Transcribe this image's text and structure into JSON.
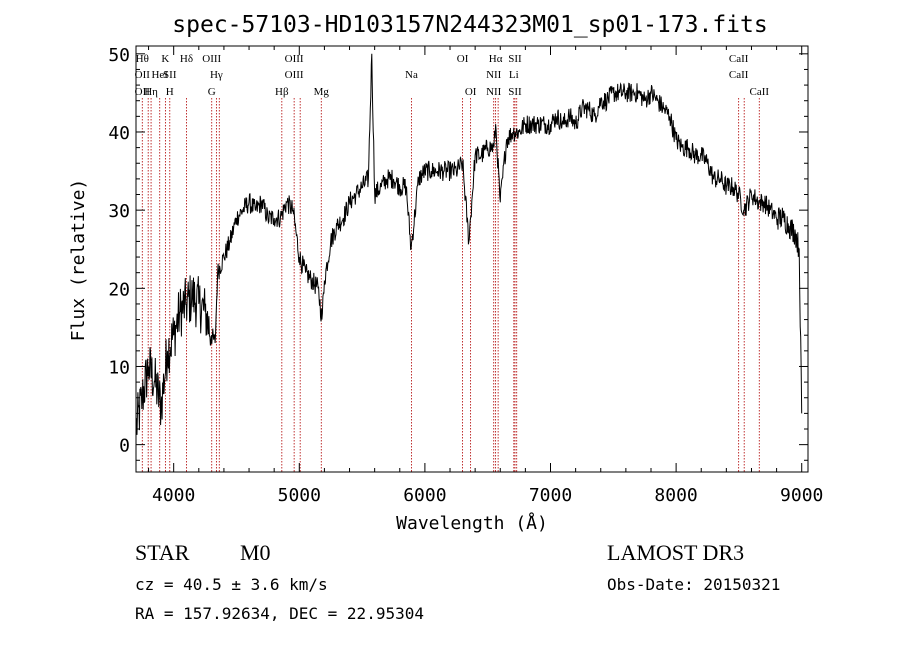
{
  "chart_data": {
    "type": "line",
    "title": "spec-57103-HD103157N244323M01_sp01-173.fits",
    "xlabel": "Wavelength (Å)",
    "ylabel": "Flux (relative)",
    "xlim": [
      3700,
      9050
    ],
    "ylim": [
      -3.5,
      51
    ],
    "xticks": [
      4000,
      5000,
      6000,
      7000,
      8000,
      9000
    ],
    "yticks": [
      0,
      10,
      20,
      30,
      40,
      50
    ],
    "grid": false,
    "series": [
      {
        "name": "",
        "x": [
          3700,
          3750,
          3800,
          3850,
          3900,
          3950,
          4000,
          4050,
          4100,
          4150,
          4200,
          4250,
          4300,
          4330,
          4350,
          4400,
          4450,
          4500,
          4550,
          4600,
          4650,
          4700,
          4750,
          4800,
          4850,
          4900,
          4950,
          5000,
          5050,
          5100,
          5150,
          5180,
          5200,
          5250,
          5300,
          5350,
          5400,
          5450,
          5500,
          5550,
          5577,
          5600,
          5650,
          5700,
          5750,
          5800,
          5850,
          5890,
          5950,
          6000,
          6050,
          6100,
          6150,
          6200,
          6250,
          6300,
          6350,
          6400,
          6450,
          6500,
          6550,
          6563,
          6600,
          6650,
          6700,
          6750,
          6800,
          6850,
          6900,
          6950,
          7000,
          7050,
          7100,
          7150,
          7200,
          7250,
          7300,
          7350,
          7400,
          7450,
          7500,
          7550,
          7600,
          7650,
          7700,
          7750,
          7800,
          7850,
          7900,
          7950,
          8000,
          8050,
          8100,
          8150,
          8200,
          8250,
          8300,
          8350,
          8400,
          8450,
          8498,
          8542,
          8600,
          8662,
          8700,
          8750,
          8800,
          8850,
          8900,
          8950,
          8980,
          9000
        ],
        "y": [
          2,
          6,
          10,
          8,
          5,
          12,
          14,
          17,
          18,
          19,
          18,
          17,
          14,
          13,
          22,
          24,
          26,
          29,
          30,
          31,
          30,
          31,
          29,
          29,
          29,
          31,
          30,
          24,
          22,
          21,
          20,
          16,
          21,
          26,
          28,
          29,
          31,
          32,
          33,
          34,
          50,
          32,
          33,
          34,
          34,
          33,
          33,
          25,
          34,
          35,
          35,
          35,
          35,
          35,
          35,
          36,
          26,
          37,
          37,
          38,
          38,
          41,
          31,
          39,
          40,
          40,
          41,
          41,
          41,
          41,
          41,
          42,
          41,
          42,
          41,
          43,
          43,
          42,
          44,
          44,
          45,
          45,
          45,
          45,
          45,
          44,
          45,
          44,
          43,
          42,
          39,
          38,
          38,
          37,
          37,
          36,
          34,
          34,
          33,
          33,
          32,
          30,
          32,
          31,
          31,
          30,
          29,
          29,
          28,
          27,
          25,
          4
        ]
      }
    ],
    "lines": [
      {
        "x": 3750,
        "upper": "Hθ",
        "middle": "OII",
        "lower": "OII"
      },
      {
        "x": 3797,
        "upper": "",
        "middle": "",
        "lower": ""
      },
      {
        "x": 3820,
        "upper": "",
        "middle": "",
        "lower": "Hη"
      },
      {
        "x": 3889,
        "upper": "",
        "middle": "HeI",
        "lower": ""
      },
      {
        "x": 3934,
        "upper": "K",
        "middle": "",
        "lower": ""
      },
      {
        "x": 3969,
        "upper": "",
        "middle": "SII",
        "lower": "H"
      },
      {
        "x": 4102,
        "upper": "Hδ",
        "middle": "",
        "lower": ""
      },
      {
        "x": 4303,
        "upper": "OIII",
        "middle": "",
        "lower": "G"
      },
      {
        "x": 4340,
        "upper": "",
        "middle": "Hγ",
        "lower": ""
      },
      {
        "x": 4363,
        "upper": "",
        "middle": "",
        "lower": ""
      },
      {
        "x": 4861,
        "upper": "",
        "middle": "",
        "lower": "Hβ"
      },
      {
        "x": 4959,
        "upper": "OIII",
        "middle": "OIII",
        "lower": ""
      },
      {
        "x": 5007,
        "upper": "",
        "middle": "",
        "lower": ""
      },
      {
        "x": 5175,
        "upper": "",
        "middle": "",
        "lower": "Mg"
      },
      {
        "x": 5893,
        "upper": "",
        "middle": "Na",
        "lower": ""
      },
      {
        "x": 6300,
        "upper": "OI",
        "middle": "",
        "lower": ""
      },
      {
        "x": 6364,
        "upper": "",
        "middle": "",
        "lower": "OI"
      },
      {
        "x": 6548,
        "upper": "",
        "middle": "NII",
        "lower": "NII"
      },
      {
        "x": 6563,
        "upper": "Hα",
        "middle": "",
        "lower": ""
      },
      {
        "x": 6583,
        "upper": "",
        "middle": "",
        "lower": ""
      },
      {
        "x": 6708,
        "upper": "",
        "middle": "Li",
        "lower": ""
      },
      {
        "x": 6717,
        "upper": "SII",
        "middle": "",
        "lower": "SII"
      },
      {
        "x": 6731,
        "upper": "",
        "middle": "",
        "lower": ""
      },
      {
        "x": 8498,
        "upper": "CaII",
        "middle": "CaII",
        "lower": ""
      },
      {
        "x": 8542,
        "upper": "",
        "middle": "",
        "lower": ""
      },
      {
        "x": 8662,
        "upper": "",
        "middle": "",
        "lower": "CaII"
      }
    ]
  },
  "info": {
    "object_class": "STAR",
    "subclass": "M0",
    "survey": "LAMOST DR3",
    "cz": "cz = 40.5 ± 3.6 km/s",
    "obs_date": "Obs-Date: 20150321",
    "coords": "RA = 157.92634, DEC =  22.95304"
  }
}
